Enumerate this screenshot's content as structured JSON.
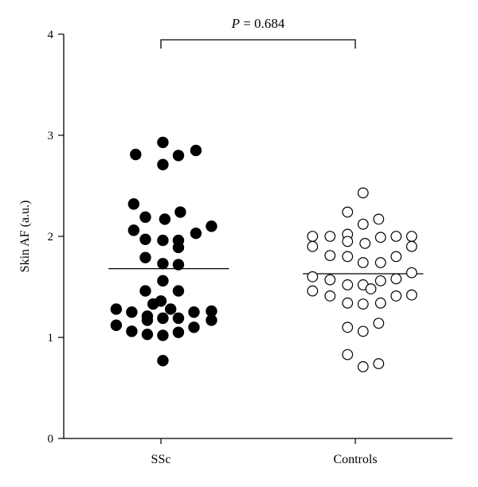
{
  "chart_data": {
    "type": "scatter",
    "ylabel": "Skin AF (a.u.)",
    "ylim": [
      0,
      4
    ],
    "yticks": [
      "0",
      "1",
      "2",
      "3",
      "4"
    ],
    "categories": [
      "SSc",
      "Controls"
    ],
    "annotation": {
      "italic": "P",
      "rest": " = 0.684"
    },
    "series": [
      {
        "marker": "filled",
        "points": [
          {
            "x": 0.87,
            "y": 2.81
          },
          {
            "x": 1.01,
            "y": 2.93
          },
          {
            "x": 1.09,
            "y": 2.8
          },
          {
            "x": 1.18,
            "y": 2.85
          },
          {
            "x": 1.01,
            "y": 2.71
          },
          {
            "x": 0.86,
            "y": 2.32
          },
          {
            "x": 0.92,
            "y": 2.19
          },
          {
            "x": 1.02,
            "y": 2.17
          },
          {
            "x": 1.1,
            "y": 2.24
          },
          {
            "x": 0.86,
            "y": 2.06
          },
          {
            "x": 1.18,
            "y": 2.03
          },
          {
            "x": 1.26,
            "y": 2.1
          },
          {
            "x": 0.92,
            "y": 1.97
          },
          {
            "x": 1.01,
            "y": 1.96
          },
          {
            "x": 1.09,
            "y": 1.96
          },
          {
            "x": 1.09,
            "y": 1.89
          },
          {
            "x": 0.92,
            "y": 1.79
          },
          {
            "x": 1.01,
            "y": 1.73
          },
          {
            "x": 1.09,
            "y": 1.72
          },
          {
            "x": 1.01,
            "y": 1.56
          },
          {
            "x": 0.92,
            "y": 1.46
          },
          {
            "x": 1.09,
            "y": 1.46
          },
          {
            "x": 1.0,
            "y": 1.36
          },
          {
            "x": 0.96,
            "y": 1.33
          },
          {
            "x": 1.05,
            "y": 1.28
          },
          {
            "x": 0.77,
            "y": 1.28
          },
          {
            "x": 0.85,
            "y": 1.25
          },
          {
            "x": 0.93,
            "y": 1.21
          },
          {
            "x": 1.17,
            "y": 1.25
          },
          {
            "x": 1.26,
            "y": 1.26
          },
          {
            "x": 1.01,
            "y": 1.19
          },
          {
            "x": 1.09,
            "y": 1.19
          },
          {
            "x": 0.93,
            "y": 1.17
          },
          {
            "x": 1.26,
            "y": 1.17
          },
          {
            "x": 0.77,
            "y": 1.12
          },
          {
            "x": 1.17,
            "y": 1.1
          },
          {
            "x": 0.85,
            "y": 1.06
          },
          {
            "x": 0.93,
            "y": 1.03
          },
          {
            "x": 1.01,
            "y": 1.02
          },
          {
            "x": 1.09,
            "y": 1.05
          },
          {
            "x": 1.01,
            "y": 0.77
          }
        ]
      },
      {
        "marker": "open",
        "points": [
          {
            "x": 2.04,
            "y": 2.43
          },
          {
            "x": 1.96,
            "y": 2.24
          },
          {
            "x": 2.12,
            "y": 2.17
          },
          {
            "x": 2.04,
            "y": 2.12
          },
          {
            "x": 1.78,
            "y": 2.0
          },
          {
            "x": 1.87,
            "y": 2.0
          },
          {
            "x": 1.96,
            "y": 2.02
          },
          {
            "x": 2.13,
            "y": 1.99
          },
          {
            "x": 2.21,
            "y": 2.0
          },
          {
            "x": 2.29,
            "y": 2.0
          },
          {
            "x": 1.78,
            "y": 1.9
          },
          {
            "x": 1.96,
            "y": 1.95
          },
          {
            "x": 2.05,
            "y": 1.93
          },
          {
            "x": 2.29,
            "y": 1.9
          },
          {
            "x": 1.87,
            "y": 1.81
          },
          {
            "x": 1.96,
            "y": 1.8
          },
          {
            "x": 2.21,
            "y": 1.8
          },
          {
            "x": 2.04,
            "y": 1.74
          },
          {
            "x": 2.13,
            "y": 1.74
          },
          {
            "x": 2.29,
            "y": 1.64
          },
          {
            "x": 1.78,
            "y": 1.6
          },
          {
            "x": 1.87,
            "y": 1.57
          },
          {
            "x": 2.13,
            "y": 1.56
          },
          {
            "x": 2.21,
            "y": 1.58
          },
          {
            "x": 1.96,
            "y": 1.52
          },
          {
            "x": 2.04,
            "y": 1.52
          },
          {
            "x": 2.08,
            "y": 1.48
          },
          {
            "x": 1.78,
            "y": 1.46
          },
          {
            "x": 1.87,
            "y": 1.41
          },
          {
            "x": 2.21,
            "y": 1.41
          },
          {
            "x": 2.29,
            "y": 1.42
          },
          {
            "x": 1.96,
            "y": 1.34
          },
          {
            "x": 2.04,
            "y": 1.33
          },
          {
            "x": 2.13,
            "y": 1.34
          },
          {
            "x": 2.12,
            "y": 1.14
          },
          {
            "x": 1.96,
            "y": 1.1
          },
          {
            "x": 2.04,
            "y": 1.06
          },
          {
            "x": 1.96,
            "y": 0.83
          },
          {
            "x": 2.12,
            "y": 0.74
          },
          {
            "x": 2.04,
            "y": 0.71
          }
        ]
      }
    ],
    "means": [
      {
        "x_from": 0.73,
        "x_to": 1.35,
        "y": 1.68
      },
      {
        "x_from": 1.73,
        "x_to": 2.35,
        "y": 1.63
      }
    ]
  }
}
